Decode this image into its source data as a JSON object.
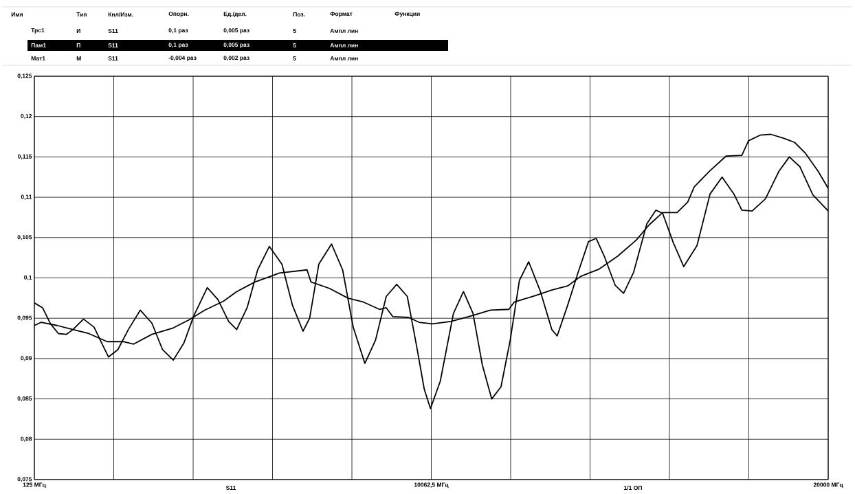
{
  "chart_data": {
    "type": "line",
    "annotations": [
      "Имя",
      "Тип",
      "Кнл/Изм.",
      "Опорн.",
      "Ед./дел.",
      "Поз.",
      "Формат",
      "Функции",
      "Трс1",
      "И",
      "S11",
      "0,1 раз",
      "0,005 раз",
      "5",
      "Ампл лин",
      "Пам1",
      "П",
      "S11",
      "0,1 раз",
      "0,005 раз",
      "5",
      "Ампл лин",
      "Мат1",
      "М",
      "S11",
      "-0,004 раз",
      "0,002 раз",
      "5",
      "Ампл лин",
      "S11",
      "1/1 ОП"
    ],
    "xlim": [
      125,
      20000
    ],
    "ylim": [
      0.075,
      0.125
    ],
    "xticks": [
      {
        "value": 125,
        "label": "125 МГц"
      },
      {
        "value": 2112.5,
        "label": null
      },
      {
        "value": 4100,
        "label": null
      },
      {
        "value": 6087.5,
        "label": null
      },
      {
        "value": 8075,
        "label": null
      },
      {
        "value": 10062.5,
        "label": "10062,5 МГц"
      },
      {
        "value": 12050,
        "label": null
      },
      {
        "value": 14037.5,
        "label": null
      },
      {
        "value": 16025,
        "label": null
      },
      {
        "value": 18012.5,
        "label": null
      },
      {
        "value": 20000,
        "label": "20000 МГц"
      }
    ],
    "yticks": [
      {
        "value": 0.075,
        "label": "0,075"
      },
      {
        "value": 0.08,
        "label": "0,08"
      },
      {
        "value": 0.085,
        "label": "0,085"
      },
      {
        "value": 0.09,
        "label": "0,09"
      },
      {
        "value": 0.095,
        "label": "0,095"
      },
      {
        "value": 0.1,
        "label": "0,1"
      },
      {
        "value": 0.105,
        "label": "0,105"
      },
      {
        "value": 0.11,
        "label": "0,11"
      },
      {
        "value": 0.115,
        "label": "0,115"
      },
      {
        "value": 0.12,
        "label": "0,12"
      },
      {
        "value": 0.125,
        "label": "0,125"
      }
    ],
    "grid": true,
    "marker": "none",
    "line_style": "solid",
    "series": [
      {
        "color": "#000000",
        "x": [
          125,
          330,
          530,
          727,
          925,
          1091,
          1355,
          1619,
          1813,
          1981,
          2214,
          2478,
          2776,
          3067,
          3335,
          3602,
          3866,
          4117,
          4455,
          4722,
          4989,
          5190,
          5451,
          5715,
          6009,
          6323,
          6587,
          6851,
          7017,
          7246,
          7564,
          7843,
          8107,
          8400,
          8667,
          8934,
          9197,
          9462,
          9693,
          9887,
          10042,
          10288,
          10617,
          10868,
          11107,
          11341,
          11575,
          11808,
          12039,
          12269,
          12501,
          12796,
          13080,
          13214,
          13476,
          13740,
          13999,
          14190,
          14400,
          14666,
          14877,
          15128,
          15459,
          15688,
          15855,
          16119,
          16383,
          16714,
          17042,
          17343,
          17639,
          17838,
          18095,
          18429,
          18764,
          19026,
          19289,
          19616,
          20000
        ],
        "values": [
          0.0969,
          0.0963,
          0.0943,
          0.0931,
          0.093,
          0.0936,
          0.0949,
          0.0939,
          0.0919,
          0.0902,
          0.0911,
          0.0936,
          0.096,
          0.0944,
          0.0911,
          0.0898,
          0.0919,
          0.0953,
          0.0988,
          0.0973,
          0.0946,
          0.0936,
          0.0963,
          0.101,
          0.1039,
          0.1017,
          0.0966,
          0.0934,
          0.095,
          0.1017,
          0.1042,
          0.101,
          0.0939,
          0.0894,
          0.0923,
          0.0977,
          0.0992,
          0.0977,
          0.0916,
          0.0862,
          0.0838,
          0.0872,
          0.0956,
          0.0983,
          0.0956,
          0.0892,
          0.085,
          0.0865,
          0.0923,
          0.0997,
          0.102,
          0.0983,
          0.0936,
          0.0928,
          0.0966,
          0.1007,
          0.1045,
          0.1049,
          0.1026,
          0.0991,
          0.0981,
          0.1007,
          0.1067,
          0.1084,
          0.108,
          0.1044,
          0.1014,
          0.104,
          0.1104,
          0.1125,
          0.1104,
          0.1084,
          0.1083,
          0.1098,
          0.1132,
          0.115,
          0.1138,
          0.1103,
          0.1083
        ]
      },
      {
        "color": "#000000",
        "x": [
          125,
          297,
          694,
          1091,
          1487,
          1947,
          2348,
          2610,
          3067,
          3602,
          3998,
          4388,
          4856,
          5190,
          5649,
          6043,
          6258,
          6952,
          7050,
          7513,
          7975,
          8366,
          8767,
          8934,
          9098,
          9494,
          9754,
          10088,
          10552,
          11074,
          11542,
          12005,
          12137,
          12662,
          13080,
          13476,
          13807,
          14267,
          14731,
          15195,
          15521,
          15855,
          16217,
          16482,
          16647,
          17042,
          17443,
          17838,
          18004,
          18296,
          18563,
          18894,
          19158,
          19423,
          19750,
          20000
        ],
        "values": [
          0.0941,
          0.0945,
          0.0941,
          0.0936,
          0.0931,
          0.0921,
          0.0921,
          0.0918,
          0.093,
          0.0938,
          0.0948,
          0.096,
          0.0971,
          0.0983,
          0.0995,
          0.1002,
          0.1006,
          0.101,
          0.0995,
          0.0987,
          0.0975,
          0.097,
          0.0961,
          0.0963,
          0.0952,
          0.0951,
          0.0945,
          0.0943,
          0.0946,
          0.0953,
          0.096,
          0.0961,
          0.097,
          0.0978,
          0.0985,
          0.099,
          0.1002,
          0.1011,
          0.1027,
          0.1047,
          0.1066,
          0.1081,
          0.1081,
          0.1094,
          0.1113,
          0.1133,
          0.1151,
          0.1152,
          0.117,
          0.1177,
          0.1178,
          0.1173,
          0.1168,
          0.1155,
          0.1132,
          0.1111
        ]
      }
    ]
  }
}
